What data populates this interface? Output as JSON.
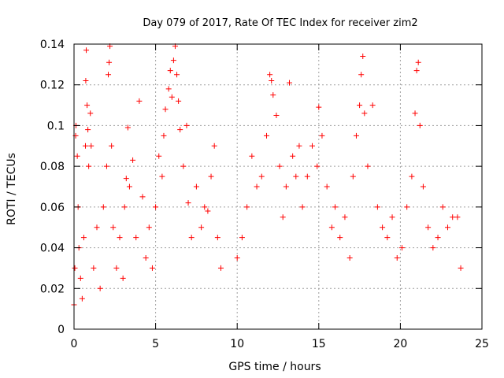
{
  "chart_data": {
    "type": "scatter",
    "title": "Day 079 of 2017, Rate Of TEC Index for receiver zim2",
    "xlabel": "GPS time / hours",
    "ylabel": "ROTI / TECUs",
    "xlim": [
      0,
      25
    ],
    "ylim": [
      0,
      0.14
    ],
    "x_ticks": [
      "0",
      "5",
      "10",
      "15",
      "20",
      "25"
    ],
    "y_ticks": [
      "0",
      "0.02",
      "0.04",
      "0.06",
      "0.08",
      "0.1",
      "0.12",
      "0.14"
    ],
    "grid": true,
    "legend": "none",
    "marker": "plus",
    "color": "#ff0000",
    "series": [
      {
        "values": [
          [
            0.0,
            0.012
          ],
          [
            0.05,
            0.03
          ],
          [
            0.1,
            0.095
          ],
          [
            0.12,
            0.1
          ],
          [
            0.2,
            0.085
          ],
          [
            0.25,
            0.06
          ],
          [
            0.3,
            0.04
          ],
          [
            0.4,
            0.025
          ],
          [
            0.5,
            0.015
          ],
          [
            0.6,
            0.045
          ],
          [
            0.7,
            0.09
          ],
          [
            0.72,
            0.122
          ],
          [
            0.75,
            0.137
          ],
          [
            0.8,
            0.11
          ],
          [
            0.85,
            0.098
          ],
          [
            0.9,
            0.08
          ],
          [
            1.0,
            0.106
          ],
          [
            1.05,
            0.09
          ],
          [
            1.2,
            0.03
          ],
          [
            1.4,
            0.05
          ],
          [
            1.6,
            0.02
          ],
          [
            1.8,
            0.06
          ],
          [
            2.0,
            0.08
          ],
          [
            2.1,
            0.125
          ],
          [
            2.15,
            0.131
          ],
          [
            2.2,
            0.139
          ],
          [
            2.3,
            0.09
          ],
          [
            2.4,
            0.05
          ],
          [
            2.6,
            0.03
          ],
          [
            2.8,
            0.045
          ],
          [
            3.0,
            0.025
          ],
          [
            3.1,
            0.06
          ],
          [
            3.2,
            0.074
          ],
          [
            3.3,
            0.099
          ],
          [
            3.4,
            0.07
          ],
          [
            3.6,
            0.083
          ],
          [
            3.8,
            0.045
          ],
          [
            4.0,
            0.112
          ],
          [
            4.2,
            0.065
          ],
          [
            4.4,
            0.035
          ],
          [
            4.6,
            0.05
          ],
          [
            4.8,
            0.03
          ],
          [
            5.0,
            0.06
          ],
          [
            5.2,
            0.085
          ],
          [
            5.4,
            0.075
          ],
          [
            5.5,
            0.095
          ],
          [
            5.6,
            0.108
          ],
          [
            5.8,
            0.118
          ],
          [
            5.9,
            0.127
          ],
          [
            6.0,
            0.114
          ],
          [
            6.1,
            0.132
          ],
          [
            6.2,
            0.139
          ],
          [
            6.3,
            0.125
          ],
          [
            6.4,
            0.112
          ],
          [
            6.5,
            0.098
          ],
          [
            6.7,
            0.08
          ],
          [
            6.9,
            0.1
          ],
          [
            7.0,
            0.062
          ],
          [
            7.2,
            0.045
          ],
          [
            7.5,
            0.07
          ],
          [
            7.8,
            0.05
          ],
          [
            8.0,
            0.06
          ],
          [
            8.2,
            0.058
          ],
          [
            8.4,
            0.075
          ],
          [
            8.6,
            0.09
          ],
          [
            8.8,
            0.045
          ],
          [
            9.0,
            0.03
          ],
          [
            10.0,
            0.035
          ],
          [
            10.3,
            0.045
          ],
          [
            10.6,
            0.06
          ],
          [
            10.9,
            0.085
          ],
          [
            11.2,
            0.07
          ],
          [
            11.5,
            0.075
          ],
          [
            11.8,
            0.095
          ],
          [
            12.0,
            0.125
          ],
          [
            12.1,
            0.122
          ],
          [
            12.2,
            0.115
          ],
          [
            12.4,
            0.105
          ],
          [
            12.6,
            0.08
          ],
          [
            12.8,
            0.055
          ],
          [
            13.0,
            0.07
          ],
          [
            13.2,
            0.121
          ],
          [
            13.4,
            0.085
          ],
          [
            13.6,
            0.075
          ],
          [
            13.8,
            0.09
          ],
          [
            14.0,
            0.06
          ],
          [
            14.3,
            0.075
          ],
          [
            14.6,
            0.09
          ],
          [
            14.9,
            0.08
          ],
          [
            15.0,
            0.109
          ],
          [
            15.2,
            0.095
          ],
          [
            15.5,
            0.07
          ],
          [
            15.8,
            0.05
          ],
          [
            16.0,
            0.06
          ],
          [
            16.3,
            0.045
          ],
          [
            16.6,
            0.055
          ],
          [
            16.9,
            0.035
          ],
          [
            17.1,
            0.075
          ],
          [
            17.3,
            0.095
          ],
          [
            17.5,
            0.11
          ],
          [
            17.6,
            0.125
          ],
          [
            17.7,
            0.134
          ],
          [
            17.8,
            0.106
          ],
          [
            18.0,
            0.08
          ],
          [
            18.3,
            0.11
          ],
          [
            18.6,
            0.06
          ],
          [
            18.9,
            0.05
          ],
          [
            19.2,
            0.045
          ],
          [
            19.5,
            0.055
          ],
          [
            19.8,
            0.035
          ],
          [
            20.1,
            0.04
          ],
          [
            20.4,
            0.06
          ],
          [
            20.7,
            0.075
          ],
          [
            20.9,
            0.106
          ],
          [
            21.0,
            0.127
          ],
          [
            21.1,
            0.131
          ],
          [
            21.2,
            0.1
          ],
          [
            21.4,
            0.07
          ],
          [
            21.7,
            0.05
          ],
          [
            22.0,
            0.04
          ],
          [
            22.3,
            0.045
          ],
          [
            22.6,
            0.06
          ],
          [
            22.9,
            0.05
          ],
          [
            23.2,
            0.055
          ],
          [
            23.5,
            0.055
          ],
          [
            23.7,
            0.03
          ]
        ]
      }
    ]
  }
}
